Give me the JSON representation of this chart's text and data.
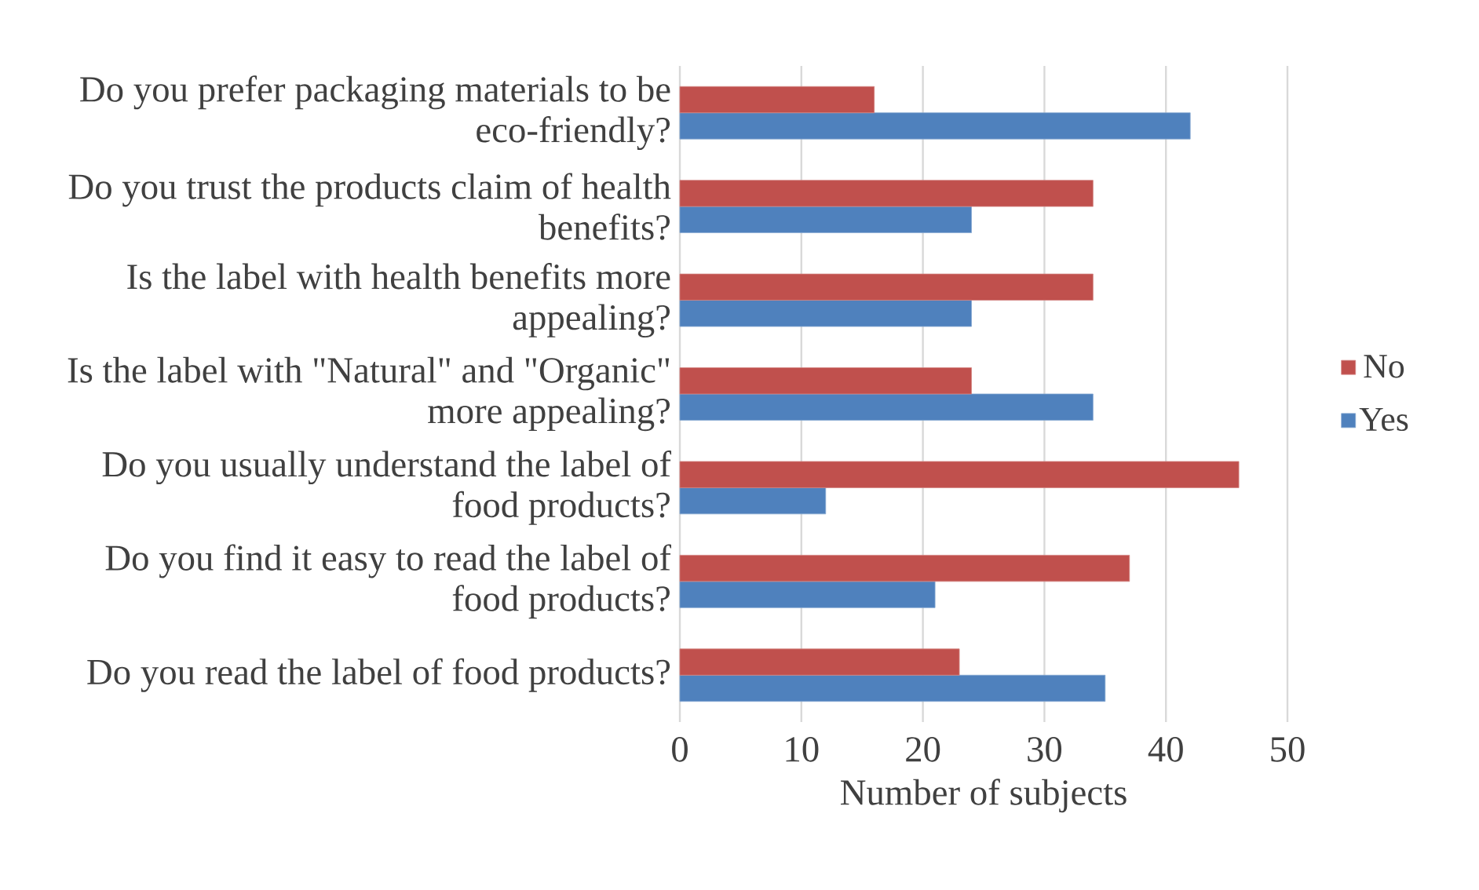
{
  "chart_data": {
    "type": "bar",
    "orientation": "horizontal",
    "categories": [
      "Do you prefer packaging materials to be eco-friendly?",
      "Do you trust the products claim of health benefits?",
      "Is the label with health benefits more appealing?",
      "Is the label with \"Natural\" and \"Organic\" more appealing?",
      "Do you usually understand the label of food products?",
      "Do you find it easy to read the label of food products?",
      "Do you read the label of food products?"
    ],
    "series": [
      {
        "name": "Yes",
        "color": "#4f81bd",
        "values": [
          42,
          24,
          24,
          34,
          12,
          21,
          35
        ]
      },
      {
        "name": "No",
        "color": "#c0504d",
        "values": [
          16,
          34,
          34,
          24,
          46,
          37,
          23
        ]
      }
    ],
    "xlabel": "Number of subjects",
    "xlim": [
      0,
      50
    ],
    "xticks": [
      0,
      10,
      20,
      30,
      40,
      50
    ],
    "grid": "x",
    "legend": "right"
  }
}
